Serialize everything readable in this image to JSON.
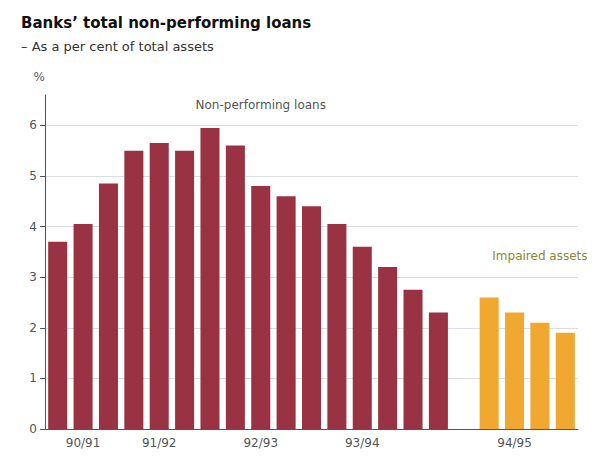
{
  "chart_data": {
    "type": "bar",
    "title": "Banks’ total non-performing loans",
    "subtitle": "– As a per cent of total assets",
    "ylabel": "%",
    "categories": [
      null,
      "90/91",
      null,
      null,
      "91/92",
      null,
      null,
      null,
      "92/93",
      null,
      null,
      null,
      "93/94",
      null,
      null,
      null,
      null,
      null,
      "94/95",
      null,
      null
    ],
    "series": [
      {
        "name": "Non-performing loans",
        "color": "#993344",
        "values": [
          3.7,
          4.05,
          4.85,
          5.5,
          5.65,
          5.5,
          5.95,
          5.6,
          4.8,
          4.6,
          4.4,
          4.05,
          3.6,
          3.2,
          2.75,
          2.3,
          null,
          null,
          null,
          null,
          null
        ]
      },
      {
        "name": "Impaired assets",
        "color": "#f0a830",
        "values": [
          null,
          null,
          null,
          null,
          null,
          null,
          null,
          null,
          null,
          null,
          null,
          null,
          null,
          null,
          null,
          null,
          null,
          2.6,
          2.3,
          2.1,
          1.9
        ]
      }
    ],
    "ylim": [
      0,
      6.6
    ],
    "yticks": [
      0,
      1,
      2,
      3,
      4,
      5,
      6
    ],
    "grid": true
  }
}
